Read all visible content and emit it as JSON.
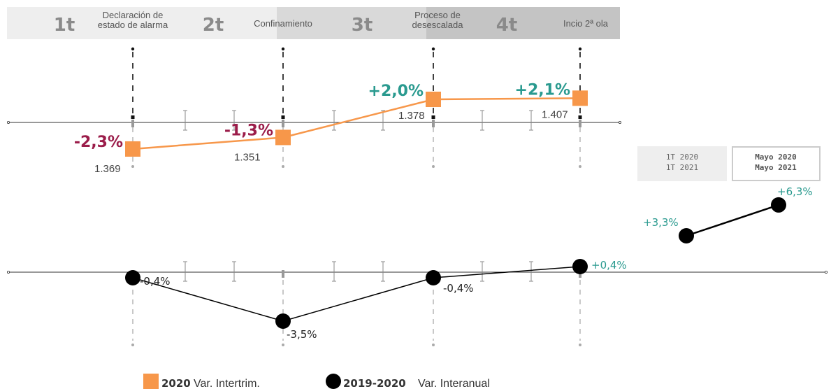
{
  "colors": {
    "intertrim": "#f7974a",
    "interanual": "#000000",
    "negative": "#9b1d4a",
    "positive": "#2a9a8f"
  },
  "quarters": [
    {
      "num": "1t",
      "label": [
        "Declaración de",
        "estado de alarma"
      ]
    },
    {
      "num": "2t",
      "label": [
        "Confinamiento"
      ]
    },
    {
      "num": "3t",
      "label": [
        "Proceso de",
        "desescalada"
      ]
    },
    {
      "num": "4t",
      "label": [
        "Incio 2ª ola"
      ]
    }
  ],
  "chart_data": [
    {
      "type": "line",
      "series": [
        {
          "name": "2020 Var. Intertrim.",
          "categories": [
            "1t",
            "2t",
            "3t",
            "4t"
          ],
          "values": [
            -2.3,
            -1.3,
            2.0,
            2.1
          ],
          "value_labels": [
            "-2,3%",
            "-1,3%",
            "+2,0%",
            "+2,1%"
          ],
          "index_labels": [
            "1.369",
            "1.351",
            "1.378",
            "1.407"
          ]
        }
      ]
    },
    {
      "type": "line",
      "series": [
        {
          "name": "2019-2020 Var. Interanual",
          "categories": [
            "1t",
            "2t",
            "3t",
            "4t"
          ],
          "values": [
            -0.4,
            -3.5,
            -0.4,
            0.4
          ],
          "value_labels": [
            "-0,4%",
            "-3,5%",
            "-0,4%",
            "+0,4%"
          ]
        }
      ]
    },
    {
      "type": "line",
      "categories": [
        "1T 2020 / 1T 2021",
        "Mayo 2020 / Mayo 2021"
      ],
      "series": [
        {
          "values": [
            3.3,
            6.3
          ],
          "value_labels": [
            "+3,3%",
            "+6,3%"
          ]
        }
      ]
    }
  ],
  "comparison": {
    "box1": [
      "1T 2020",
      "1T 2021"
    ],
    "box2": [
      "Mayo 2020",
      "Mayo 2021"
    ]
  },
  "legend": [
    {
      "bold": "2020",
      "text": "Var. Intertrim.",
      "marker": "square"
    },
    {
      "bold": "2019-2020",
      "text": "Var. Interanual",
      "marker": "circle"
    }
  ]
}
